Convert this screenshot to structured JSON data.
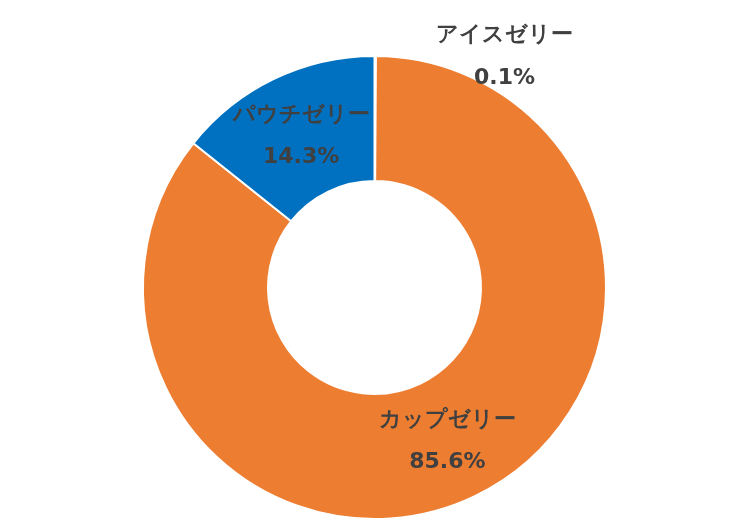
{
  "chart_data": {
    "type": "doughnut",
    "categories": [
      "アイスゼリー",
      "カップゼリー",
      "パウチゼリー"
    ],
    "values": [
      0.1,
      85.6,
      14.3
    ],
    "value_labels": [
      "0.1%",
      "85.6%",
      "14.3%"
    ],
    "colors": [
      "#a5a5a5",
      "#ed7d31",
      "#0070c0"
    ],
    "data_labels": true
  }
}
